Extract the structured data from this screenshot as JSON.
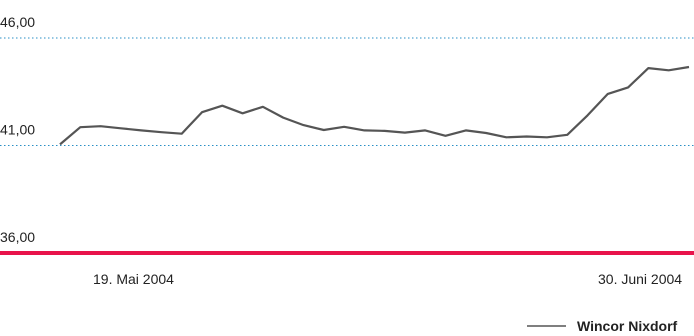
{
  "chart_data": {
    "type": "line",
    "title": "",
    "xlabel": "",
    "ylabel": "",
    "ylim": [
      36,
      46
    ],
    "y_ticks": [
      {
        "value": 46,
        "label": "46,00"
      },
      {
        "value": 41,
        "label": "41,00"
      },
      {
        "value": 36,
        "label": "36,00"
      }
    ],
    "x_labels": [
      {
        "index": 4,
        "label": "19. Mai 2004"
      },
      {
        "index": 33,
        "label": "30. Juni 2004"
      }
    ],
    "grid": true,
    "legend_position": "bottom-right",
    "colors": {
      "series": "#555555",
      "gridline": "#2a8fc6",
      "baseline": "#e8134b"
    },
    "series": [
      {
        "name": "Wincor Nixdorf",
        "values": [
          41.05,
          41.85,
          41.9,
          41.8,
          41.7,
          41.62,
          41.55,
          42.55,
          42.85,
          42.5,
          42.8,
          42.3,
          41.95,
          41.72,
          41.87,
          41.7,
          41.68,
          41.6,
          41.7,
          41.45,
          41.7,
          41.58,
          41.38,
          41.42,
          41.38,
          41.5,
          42.4,
          43.4,
          43.7,
          44.6,
          44.5,
          44.65
        ]
      }
    ]
  }
}
